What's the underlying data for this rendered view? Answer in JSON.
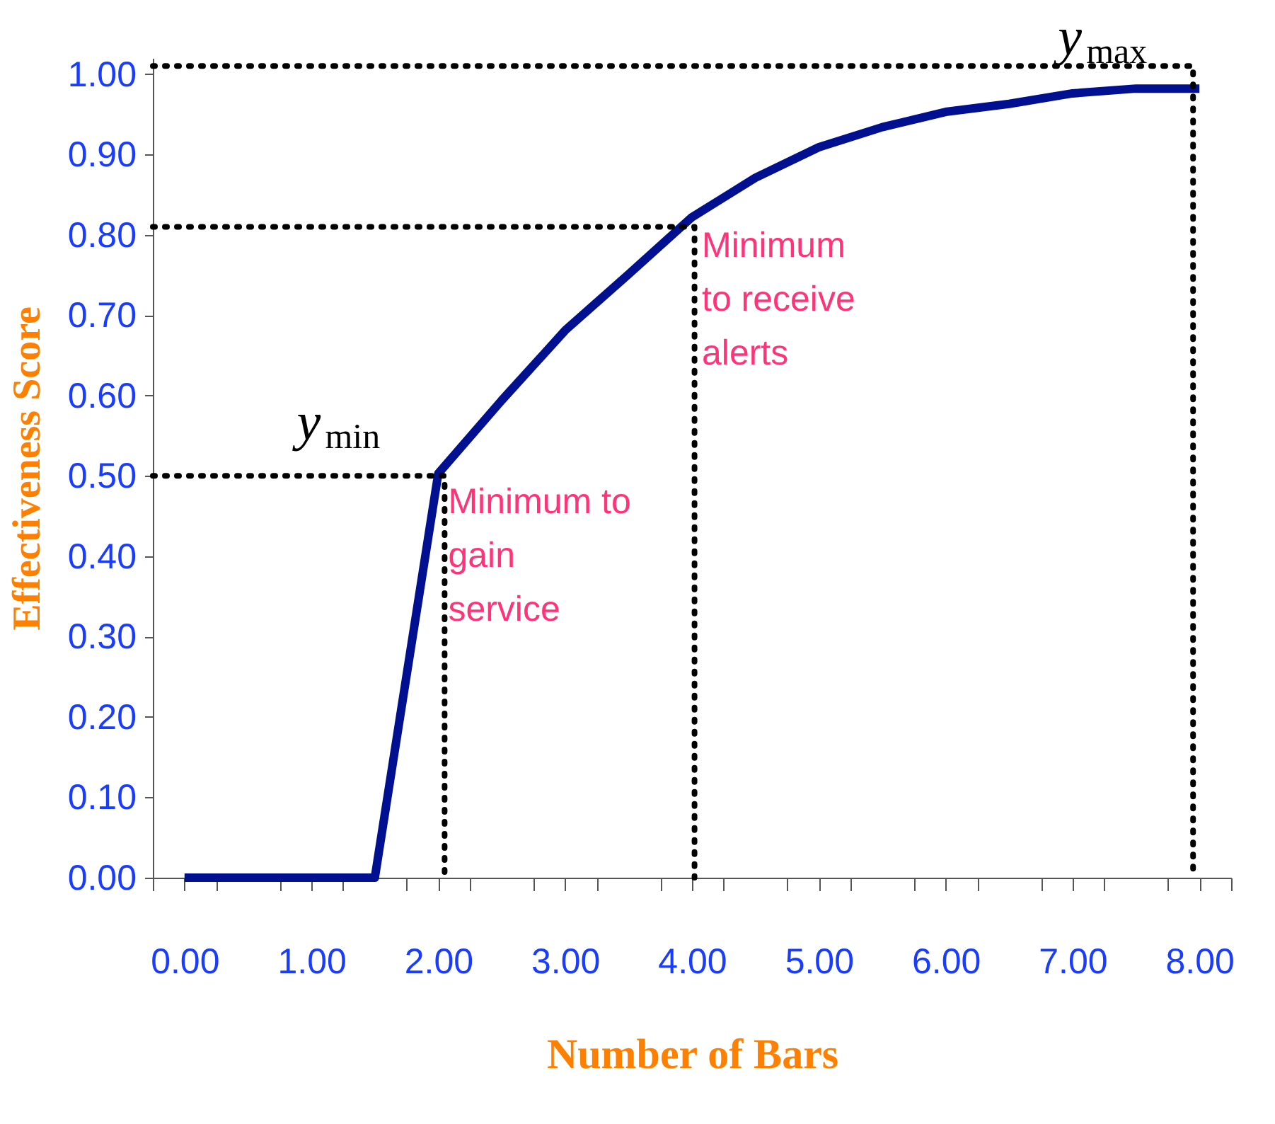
{
  "chart_data": {
    "type": "line",
    "xlabel": "Number of Bars",
    "ylabel": "Effectiveness Score",
    "xlim": [
      -0.25,
      8.25
    ],
    "ylim": [
      0,
      1.02
    ],
    "xticks": [
      {
        "value": -0.25,
        "label": null
      },
      {
        "value": 0,
        "label": "0.00"
      },
      {
        "value": 0.25,
        "label": null
      },
      {
        "value": 0.75,
        "label": null
      },
      {
        "value": 1,
        "label": "1.00"
      },
      {
        "value": 1.25,
        "label": null
      },
      {
        "value": 1.75,
        "label": null
      },
      {
        "value": 2,
        "label": "2.00"
      },
      {
        "value": 2.25,
        "label": null
      },
      {
        "value": 2.75,
        "label": null
      },
      {
        "value": 3,
        "label": "3.00"
      },
      {
        "value": 3.25,
        "label": null
      },
      {
        "value": 3.75,
        "label": null
      },
      {
        "value": 4,
        "label": "4.00"
      },
      {
        "value": 4.25,
        "label": null
      },
      {
        "value": 4.75,
        "label": null
      },
      {
        "value": 5,
        "label": "5.00"
      },
      {
        "value": 5.25,
        "label": null
      },
      {
        "value": 5.75,
        "label": null
      },
      {
        "value": 6,
        "label": "6.00"
      },
      {
        "value": 6.25,
        "label": null
      },
      {
        "value": 6.75,
        "label": null
      },
      {
        "value": 7,
        "label": "7.00"
      },
      {
        "value": 7.25,
        "label": null
      },
      {
        "value": 7.75,
        "label": null
      },
      {
        "value": 8,
        "label": "8.00"
      },
      {
        "value": 8.25,
        "label": null
      }
    ],
    "yticks": [
      {
        "value": 0,
        "label": "0.00"
      },
      {
        "value": 0.1,
        "label": "0.10"
      },
      {
        "value": 0.2,
        "label": "0.20"
      },
      {
        "value": 0.3,
        "label": "0.30"
      },
      {
        "value": 0.4,
        "label": "0.40"
      },
      {
        "value": 0.5,
        "label": "0.50"
      },
      {
        "value": 0.6,
        "label": "0.60"
      },
      {
        "value": 0.7,
        "label": "0.70"
      },
      {
        "value": 0.8,
        "label": "0.80"
      },
      {
        "value": 0.9,
        "label": "0.90"
      },
      {
        "value": 1.0,
        "label": "1.00"
      }
    ],
    "grid": false,
    "series": [
      {
        "color": "#001090",
        "line_style": "solid",
        "x": [
          0,
          1.5,
          2,
          2.5,
          3,
          3.5,
          4,
          4.5,
          5,
          5.5,
          6,
          6.5,
          7,
          7.5,
          8
        ],
        "values": [
          0,
          0,
          0.503,
          0.594,
          0.681,
          0.751,
          0.822,
          0.871,
          0.909,
          0.934,
          0.953,
          0.963,
          0.976,
          0.982,
          0.982
        ]
      },
      {
        "color": "#000000",
        "line_style": "dotted",
        "x": [
          -0.25,
          2.05,
          2.05
        ],
        "values": [
          0.5,
          0.5,
          0
        ]
      },
      {
        "color": "#000000",
        "line_style": "dotted",
        "x": [
          -0.25,
          4.02,
          4.02
        ],
        "values": [
          0.81,
          0.81,
          0
        ]
      },
      {
        "color": "#000000",
        "line_style": "dotted",
        "x": [
          -0.25,
          7.95,
          7.95
        ],
        "values": [
          1.01,
          1.01,
          0
        ]
      }
    ],
    "annotations": [
      {
        "text": "y$_{min}$",
        "x": 2,
        "y": 0.503
      },
      {
        "text": "y$_{max}$",
        "x": 8,
        "y": 0.982
      },
      {
        "text": "Minimum to\ngain\nservice",
        "x": 2,
        "y": 0.503
      },
      {
        "text": "Minimum\nto receive\nalerts",
        "x": 4,
        "y": 0.822
      }
    ]
  }
}
